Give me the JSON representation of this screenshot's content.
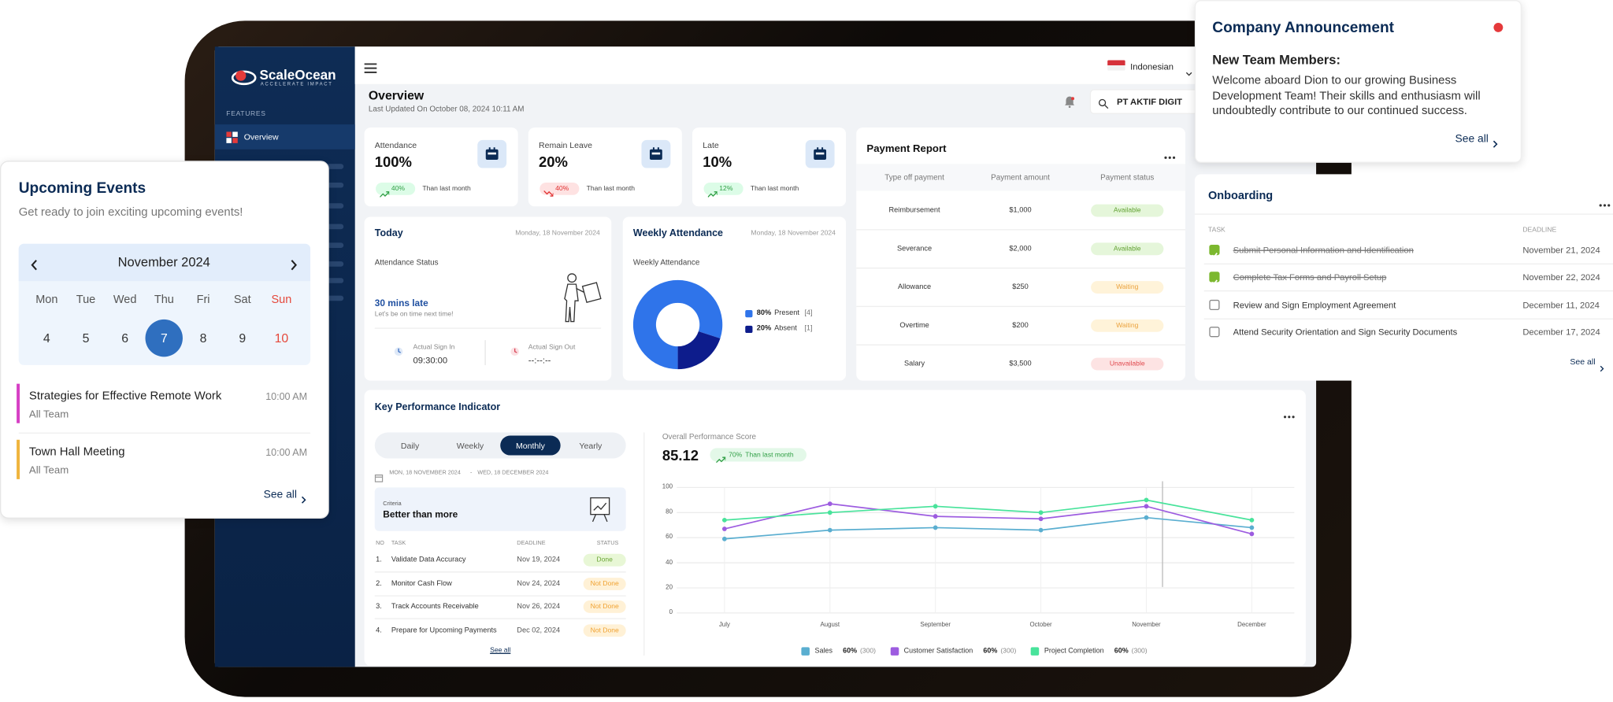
{
  "sidebar": {
    "brand": "ScaleOcean",
    "tagline": "ACCELERATE IMPACT",
    "section": "FEATURES",
    "menu": [
      "Overview"
    ]
  },
  "header": {
    "title": "Overview",
    "updated": "Last Updated On October 08, 2024 10:11 AM",
    "language": "Indonesian",
    "company": "PT AKTIF DIGIT"
  },
  "stats": [
    {
      "label": "Attendance",
      "value": "100%",
      "change": "40%",
      "trend": "up",
      "note": "Than last month"
    },
    {
      "label": "Remain Leave",
      "value": "20%",
      "change": "40%",
      "trend": "down",
      "note": "Than last month"
    },
    {
      "label": "Late",
      "value": "10%",
      "change": "12%",
      "trend": "up",
      "note": "Than last month"
    }
  ],
  "today": {
    "title": "Today",
    "date": "Monday, 18 November 2024",
    "status_label": "Attendance Status",
    "status": "30 mins late",
    "hint": "Let's be on time next time!",
    "sign_in_label": "Actual Sign In",
    "sign_in": "09:30:00",
    "sign_out_label": "Actual Sign Out",
    "sign_out": "--:--:--"
  },
  "status_styles": {
    "Available": [
      "#e5f6da",
      "#5f9f2f"
    ],
    "Waiting": [
      "#fff3d9",
      "#eba23e"
    ],
    "Unavailable": [
      "#fde3e3",
      "#e0474c"
    ],
    "Done": [
      "#e8f7d6",
      "#6aa535"
    ],
    "Not Done": [
      "#fff1d6",
      "#f0a232"
    ]
  },
  "payment_report": {
    "title": "Payment Report",
    "columns": [
      "Type off payment",
      "Payment amount",
      "Payment status"
    ],
    "rows": [
      [
        "Reimbursement",
        "$1,000",
        "Available"
      ],
      [
        "Severance",
        "$2,000",
        "Available"
      ],
      [
        "Allowance",
        "$250",
        "Waiting"
      ],
      [
        "Overtime",
        "$200",
        "Waiting"
      ],
      [
        "Salary",
        "$3,500",
        "Unavailable"
      ]
    ]
  },
  "kpi": {
    "title": "Key Performance Indicator",
    "tabs": [
      "Daily",
      "Weekly",
      "Monthly",
      "Yearly"
    ],
    "active_tab": 2,
    "date_from": "MON, 18 NOVEMBER 2024",
    "date_separator": "-",
    "date_to": "WED, 18 DECEMBER 2024",
    "criteria_label": "Criteria",
    "criteria": "Better than more",
    "columns": [
      "NO",
      "TASK",
      "DEADLINE",
      "STATUS"
    ],
    "rows": [
      [
        "1.",
        "Validate Data Accuracy",
        "Nov 19, 2024",
        "Done"
      ],
      [
        "2.",
        "Monitor Cash Flow",
        "Nov 24, 2024",
        "Not Done"
      ],
      [
        "3.",
        "Track Accounts Receivable",
        "Nov 26, 2024",
        "Not Done"
      ],
      [
        "4.",
        "Prepare for Upcoming Payments",
        "Dec 02, 2024",
        "Not Done"
      ]
    ],
    "see_all": "See all",
    "score_label": "Overall Performance Score",
    "score": "85.12",
    "score_change": "70%",
    "score_note": "Than last month"
  },
  "chart_data": [
    {
      "type": "pie",
      "title": "Weekly Attendance",
      "date": "Monday, 18 November 2024",
      "subtitle": "Weekly Attendance",
      "categories": [
        "Present",
        "Absent"
      ],
      "values": [
        80,
        20
      ],
      "value_labels": [
        "80%",
        "20%"
      ],
      "count_labels": [
        "[4]",
        "[1]"
      ],
      "colors": [
        "#2f74ea",
        "#0d1c8c"
      ]
    },
    {
      "type": "line",
      "categories": [
        "July",
        "August",
        "September",
        "October",
        "November",
        "December"
      ],
      "ylim": [
        0,
        100
      ],
      "yticks": [
        0,
        20,
        40,
        60,
        80,
        100
      ],
      "grid": true,
      "series": [
        {
          "name": "Sales",
          "color": "#5aaed0",
          "values": [
            59,
            66,
            68,
            66,
            76,
            68
          ],
          "legend_value": "60%",
          "legend_count": "(300)"
        },
        {
          "name": "Customer Satisfaction",
          "color": "#9d5ce0",
          "values": [
            67,
            87,
            77,
            75,
            85,
            63
          ],
          "legend_value": "60%",
          "legend_count": "(300)"
        },
        {
          "name": "Project Completion",
          "color": "#48e39b",
          "values": [
            74,
            80,
            85,
            80,
            90,
            74
          ],
          "legend_value": "60%",
          "legend_count": "(300)"
        }
      ]
    }
  ],
  "announcement": {
    "title": "Company Announcement",
    "subtitle": "New Team Members:",
    "body": "Welcome aboard Dion to our growing Business Development Team! Their skills and enthusiasm will undoubtedly contribute to our continued success.",
    "see_all": "See all"
  },
  "onboarding": {
    "title": "Onboarding",
    "columns": [
      "TASK",
      "DEADLINE"
    ],
    "rows": [
      {
        "task": "Submit Personal Information and Identification",
        "deadline": "November 21, 2024",
        "done": true
      },
      {
        "task": "Complete Tax Forms and Payroll Setup",
        "deadline": "November 22, 2024",
        "done": true
      },
      {
        "task": "Review and Sign Employment Agreement",
        "deadline": "December 11, 2024",
        "done": false
      },
      {
        "task": "Attend Security Orientation and Sign Security Documents",
        "deadline": "December 17, 2024",
        "done": false
      }
    ],
    "see_all": "See all"
  },
  "upcoming_events": {
    "title": "Upcoming Events",
    "subtitle": "Get ready to join exciting upcoming events!",
    "month": "November 2024",
    "weekdays": [
      "Mon",
      "Tue",
      "Wed",
      "Thu",
      "Fri",
      "Sat",
      "Sun"
    ],
    "dates": [
      4,
      5,
      6,
      7,
      8,
      9,
      10
    ],
    "highlight": [
      false,
      false,
      false,
      true,
      false,
      false,
      false
    ],
    "events": [
      {
        "title": "Strategies for Effective Remote Work",
        "team": "All Team",
        "time": "10:00 AM",
        "color": "#d63fc4"
      },
      {
        "title": "Town Hall Meeting",
        "team": "All Team",
        "time": "10:00 AM",
        "color": "#f0b43c"
      }
    ],
    "see_all": "See all"
  }
}
